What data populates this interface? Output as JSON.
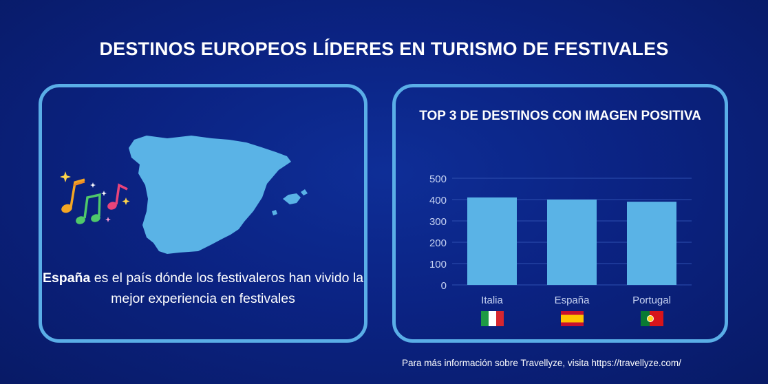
{
  "page": {
    "title": "DESTINOS EUROPEOS LÍDERES EN TURISMO DE FESTIVALES",
    "footer": "Para más información sobre Travellyze, visita https://travellyze.com/"
  },
  "left_panel": {
    "highlight": "España",
    "text": " es el país dónde los festivaleros han vivido la mejor experiencia en festivales",
    "map_icon": "spain-map-icon",
    "notes_icon": "music-notes-icon"
  },
  "chart_data": {
    "type": "bar",
    "title": "TOP 3 DE DESTINOS CON IMAGEN POSITIVA",
    "categories": [
      "Italia",
      "España",
      "Portugal"
    ],
    "values": [
      410,
      400,
      390
    ],
    "ylim": [
      0,
      500
    ],
    "yticks": [
      "500",
      "400",
      "300",
      "200",
      "100",
      "0"
    ],
    "grid": true,
    "xlabel": "",
    "ylabel": "",
    "bar_color": "#5ab3e6",
    "flags": [
      "italy-flag-icon",
      "spain-flag-icon",
      "portugal-flag-icon"
    ]
  },
  "colors": {
    "background": "#0b2383",
    "panel_border": "#5aaee7",
    "map": "#5ab3e6"
  }
}
